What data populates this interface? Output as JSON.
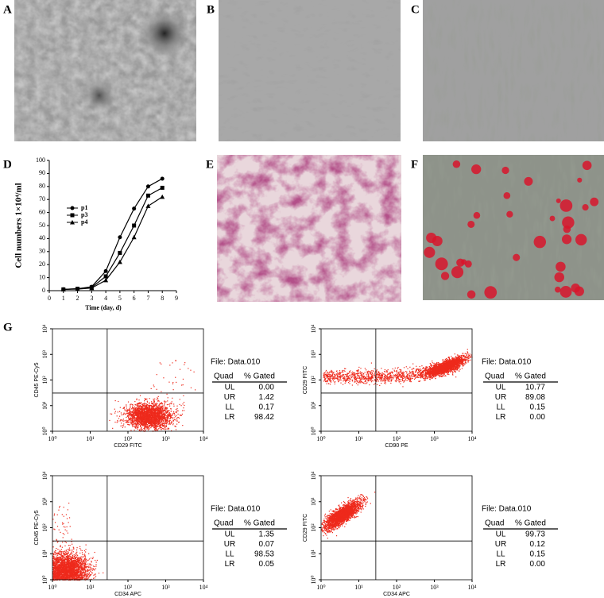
{
  "panel_labels": [
    "A",
    "B",
    "C",
    "D",
    "E",
    "F",
    "G"
  ],
  "chart_data": {
    "type": "line",
    "x_label": "Time (day, d)",
    "y_label": "Cell numbers 1×10⁴/ml",
    "x": [
      1,
      2,
      3,
      4,
      5,
      6,
      7,
      8
    ],
    "series": [
      {
        "name": "p1",
        "color": "#000000",
        "marker": "circle",
        "values": [
          1,
          1.5,
          3,
          15,
          41,
          63,
          80,
          86
        ]
      },
      {
        "name": "p3",
        "color": "#000000",
        "marker": "square",
        "values": [
          1,
          1.5,
          2.5,
          11,
          29,
          50,
          73,
          79
        ]
      },
      {
        "name": "p4",
        "color": "#000000",
        "marker": "triangle",
        "values": [
          1,
          1.2,
          2,
          8,
          22,
          41,
          65,
          72
        ]
      }
    ],
    "xlim": [
      0,
      9
    ],
    "xticks": [
      0,
      1,
      2,
      3,
      4,
      5,
      6,
      7,
      8,
      9
    ],
    "ylim": [
      0,
      100
    ],
    "yticks": [
      0,
      10,
      20,
      30,
      40,
      50,
      60,
      70,
      80,
      90,
      100
    ]
  },
  "flow_cytometry": [
    {
      "x_label": "CD29 FITC",
      "y_label": "CD45 PE-Cy5",
      "log_scale": true,
      "xlim": [
        1,
        10000
      ],
      "ylim": [
        1,
        10000
      ],
      "xticks": [
        {
          "value": 1,
          "label": "10⁰"
        },
        {
          "value": 10,
          "label": "10¹"
        },
        {
          "value": 100,
          "label": "10²"
        },
        {
          "value": 1000,
          "label": "10³"
        },
        {
          "value": 10000,
          "label": "10⁴"
        }
      ],
      "yticks": [
        {
          "value": 1,
          "label": "10⁰"
        },
        {
          "value": 10,
          "label": "10¹"
        },
        {
          "value": 100,
          "label": "10²"
        },
        {
          "value": 1000,
          "label": "10³"
        },
        {
          "value": 10000,
          "label": "10⁴"
        }
      ],
      "file": "File: Data.010",
      "header": [
        "Quad",
        "% Gated"
      ],
      "rows": [
        [
          "UL",
          "0.00"
        ],
        [
          "UR",
          "1.42"
        ],
        [
          "LL",
          "0.17"
        ],
        [
          "LR",
          "98.42"
        ]
      ]
    },
    {
      "x_label": "CD90 PE",
      "y_label": "CD29 FITC",
      "log_scale": true,
      "xlim": [
        1,
        10000
      ],
      "ylim": [
        1,
        10000
      ],
      "xticks": [
        {
          "value": 1,
          "label": "10⁰"
        },
        {
          "value": 10,
          "label": "10¹"
        },
        {
          "value": 100,
          "label": "10²"
        },
        {
          "value": 1000,
          "label": "10³"
        },
        {
          "value": 10000,
          "label": "10⁴"
        }
      ],
      "yticks": [
        {
          "value": 1,
          "label": "10⁰"
        },
        {
          "value": 10,
          "label": "10¹"
        },
        {
          "value": 100,
          "label": "10²"
        },
        {
          "value": 1000,
          "label": "10³"
        },
        {
          "value": 10000,
          "label": "10⁴"
        }
      ],
      "file": "File: Data.010",
      "header": [
        "Quad",
        "% Gated"
      ],
      "rows": [
        [
          "UL",
          "10.77"
        ],
        [
          "UR",
          "89.08"
        ],
        [
          "LL",
          "0.15"
        ],
        [
          "LR",
          "0.00"
        ]
      ]
    },
    {
      "x_label": "CD34 APC",
      "y_label": "CD45 PE-Cy5",
      "log_scale": true,
      "xlim": [
        1,
        10000
      ],
      "ylim": [
        1,
        10000
      ],
      "xticks": [
        {
          "value": 1,
          "label": "10⁰"
        },
        {
          "value": 10,
          "label": "10¹"
        },
        {
          "value": 100,
          "label": "10²"
        },
        {
          "value": 1000,
          "label": "10³"
        },
        {
          "value": 10000,
          "label": "10⁴"
        }
      ],
      "yticks": [
        {
          "value": 1,
          "label": "10⁰"
        },
        {
          "value": 10,
          "label": "10¹"
        },
        {
          "value": 100,
          "label": "10²"
        },
        {
          "value": 1000,
          "label": "10³"
        },
        {
          "value": 10000,
          "label": "10⁴"
        }
      ],
      "file": "File: Data.010",
      "header": [
        "Quad",
        "% Gated"
      ],
      "rows": [
        [
          "UL",
          "1.35"
        ],
        [
          "UR",
          "0.07"
        ],
        [
          "LL",
          "98.53"
        ],
        [
          "LR",
          "0.05"
        ]
      ]
    },
    {
      "x_label": "CD34 APC",
      "y_label": "CD29 FITC",
      "log_scale": true,
      "xlim": [
        1,
        10000
      ],
      "ylim": [
        1,
        10000
      ],
      "xticks": [
        {
          "value": 1,
          "label": "10⁰"
        },
        {
          "value": 10,
          "label": "10¹"
        },
        {
          "value": 100,
          "label": "10²"
        },
        {
          "value": 1000,
          "label": "10³"
        },
        {
          "value": 10000,
          "label": "10⁴"
        }
      ],
      "yticks": [
        {
          "value": 1,
          "label": "10⁰"
        },
        {
          "value": 10,
          "label": "10¹"
        },
        {
          "value": 100,
          "label": "10²"
        },
        {
          "value": 1000,
          "label": "10³"
        },
        {
          "value": 10000,
          "label": "10⁴"
        }
      ],
      "file": "File: Data.010",
      "header": [
        "Quad",
        "% Gated"
      ],
      "rows": [
        [
          "UL",
          "99.73"
        ],
        [
          "UR",
          "0.12"
        ],
        [
          "LL",
          "0.15"
        ],
        [
          "LR",
          "0.00"
        ]
      ]
    }
  ]
}
